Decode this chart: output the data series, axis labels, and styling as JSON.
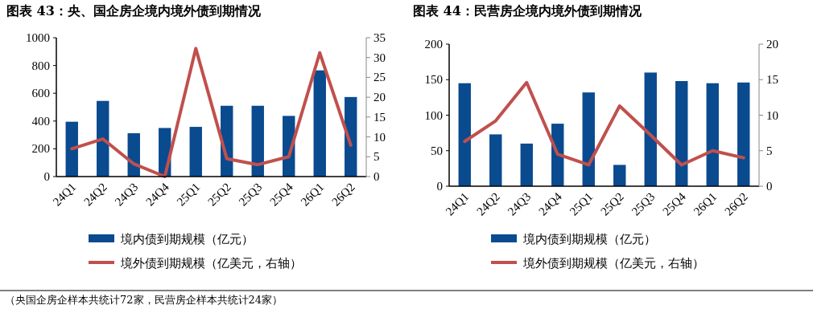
{
  "chart_data": [
    {
      "type": "bar",
      "title": "图表 43：央、国企房企境内境外债到期情况",
      "categories": [
        "24Q1",
        "24Q2",
        "24Q3",
        "24Q4",
        "25Q1",
        "25Q2",
        "25Q3",
        "25Q4",
        "26Q1",
        "26Q2"
      ],
      "series": [
        {
          "name": "境内债到期规模（亿元）",
          "color": "#0a4a8f",
          "values": [
            395,
            545,
            312,
            350,
            358,
            510,
            510,
            437,
            765,
            573
          ]
        },
        {
          "name": "境外债到期规模（亿美元，右轴）",
          "type": "line",
          "axis": "y2",
          "color": "#c0504d",
          "values": [
            7,
            9.5,
            3.2,
            0,
            32.3,
            4.5,
            3,
            5,
            31.2,
            7.9
          ]
        }
      ],
      "ylim": [
        0,
        1000
      ],
      "yticks": [
        0,
        200,
        400,
        600,
        800,
        1000
      ],
      "y2lim": [
        0,
        35
      ],
      "y2ticks": [
        0,
        5,
        10,
        15,
        20,
        25,
        30,
        35
      ],
      "legend": "bottom",
      "grid": false,
      "annotations": [
        "（央国企房企样本共统计72家，民营房企样本共统计24家）"
      ]
    },
    {
      "type": "bar",
      "title": "图表 44：民营房企境内境外债到期情况",
      "categories": [
        "24Q1",
        "24Q2",
        "24Q3",
        "24Q4",
        "25Q1",
        "25Q2",
        "25Q3",
        "25Q4",
        "26Q1",
        "26Q2"
      ],
      "series": [
        {
          "name": "境内债到期规模（亿元）",
          "color": "#0a4a8f",
          "values": [
            145,
            73,
            60,
            88,
            132,
            30,
            160,
            148,
            145,
            146
          ]
        },
        {
          "name": "境外债到期规模（亿美元，右轴）",
          "type": "line",
          "axis": "y2",
          "color": "#c0504d",
          "values": [
            6.3,
            9.2,
            14.6,
            4.5,
            3,
            11.3,
            7.2,
            3,
            5,
            4
          ]
        }
      ],
      "ylim": [
        0,
        200
      ],
      "yticks": [
        0,
        50,
        100,
        150,
        200
      ],
      "y2lim": [
        0,
        20
      ],
      "y2ticks": [
        0,
        5,
        10,
        15,
        20
      ],
      "legend": "bottom",
      "grid": false
    }
  ]
}
